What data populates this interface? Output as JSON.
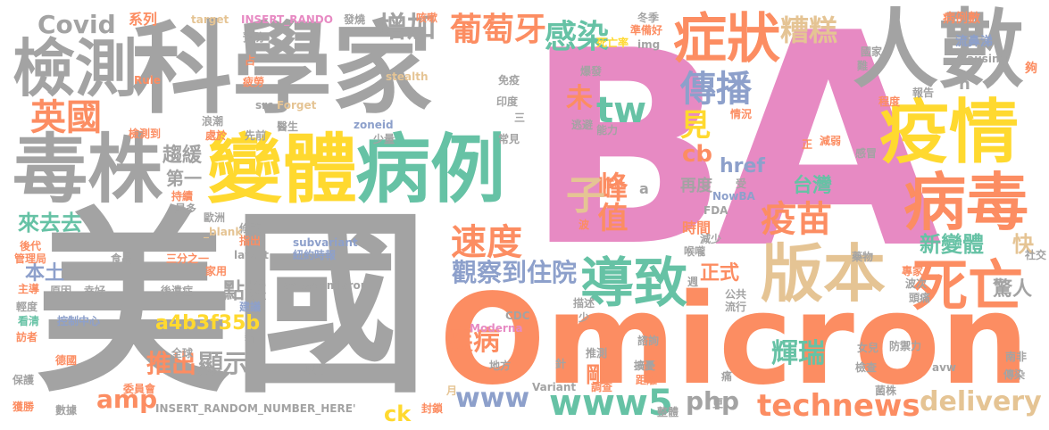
{
  "colors": {
    "gray": "#a3a3a3",
    "pink": "#e78ac3",
    "orange": "#fc8d62",
    "teal": "#66c2a5",
    "blue": "#8da0cb",
    "gold": "#e5c494",
    "yellow": "#ffd92f",
    "lime": "#a6d854"
  },
  "words": [
    {
      "text": "B",
      "color": "pink"
    },
    {
      "text": "A",
      "color": "pink"
    },
    {
      "text": "美國",
      "color": "gray"
    },
    {
      "text": "Omicron",
      "color": "orange"
    },
    {
      "text": "科學家",
      "color": "gray"
    },
    {
      "text": "人數",
      "color": "gray"
    },
    {
      "text": "變體",
      "color": "yellow"
    },
    {
      "text": "病例",
      "color": "teal"
    },
    {
      "text": "毒株",
      "color": "gray"
    },
    {
      "text": "檢測",
      "color": "gray"
    },
    {
      "text": "症狀",
      "color": "orange"
    },
    {
      "text": "疫情",
      "color": "yellow"
    },
    {
      "text": "病毒",
      "color": "orange"
    },
    {
      "text": "版本",
      "color": "gold"
    },
    {
      "text": "死亡",
      "color": "orange"
    },
    {
      "text": "導致",
      "color": "teal"
    },
    {
      "text": "疫苗",
      "color": "orange"
    },
    {
      "text": "www5",
      "color": "teal"
    },
    {
      "text": "technews",
      "color": "orange"
    },
    {
      "text": "www",
      "color": "blue"
    },
    {
      "text": "英國",
      "color": "orange"
    },
    {
      "text": "速度",
      "color": "orange"
    },
    {
      "text": "感染",
      "color": "teal"
    },
    {
      "text": "糟糕",
      "color": "gold"
    },
    {
      "text": "葡萄牙",
      "color": "orange"
    },
    {
      "text": "傳播",
      "color": "blue"
    },
    {
      "text": "增加",
      "color": "gray"
    },
    {
      "text": "Covid",
      "color": "gray"
    },
    {
      "text": "tw",
      "color": "teal"
    },
    {
      "text": "delivery",
      "color": "gold"
    },
    {
      "text": "觀察到住院",
      "color": "blue"
    },
    {
      "text": "新變體",
      "color": "teal"
    },
    {
      "text": "快",
      "color": "gold"
    },
    {
      "text": "輝瑞",
      "color": "teal"
    },
    {
      "text": "峰值",
      "color": "orange"
    },
    {
      "text": "子",
      "color": "gold"
    },
    {
      "text": "見",
      "color": "yellow"
    },
    {
      "text": "未",
      "color": "orange"
    },
    {
      "text": "疾病",
      "color": "orange"
    },
    {
      "text": "cb",
      "color": "orange"
    },
    {
      "text": "推出",
      "color": "orange"
    },
    {
      "text": "顯示",
      "color": "gray"
    },
    {
      "text": "amp",
      "color": "orange"
    },
    {
      "text": "php",
      "color": "gray"
    },
    {
      "text": "a4b3f35b",
      "color": "yellow"
    },
    {
      "text": "台灣",
      "color": "teal"
    },
    {
      "text": "正式",
      "color": "orange"
    },
    {
      "text": "點燃",
      "color": "gray"
    },
    {
      "text": "驚人",
      "color": "gray"
    },
    {
      "text": "href",
      "color": "blue"
    },
    {
      "text": "時間",
      "color": "orange"
    },
    {
      "text": "再度",
      "color": "gray"
    },
    {
      "text": "來去去",
      "color": "teal"
    },
    {
      "text": "本土",
      "color": "blue"
    },
    {
      "text": "趨緩",
      "color": "gray"
    },
    {
      "text": "第一",
      "color": "gray"
    },
    {
      "text": "ck",
      "color": "yellow"
    },
    {
      "text": "剛",
      "color": "orange"
    },
    {
      "text": "系列",
      "color": "orange"
    },
    {
      "text": "target",
      "color": "gold"
    },
    {
      "text": "INSERT_RANDO",
      "color": "pink"
    },
    {
      "text": "發燒",
      "color": "gray"
    },
    {
      "text": "咳嗽",
      "color": "orange"
    },
    {
      "text": "冬季",
      "color": "gray"
    },
    {
      "text": "準備好",
      "color": "orange"
    },
    {
      "text": "死亡率",
      "color": "yellow"
    },
    {
      "text": "病例數",
      "color": "orange"
    },
    {
      "text": "流鼻涕",
      "color": "blue"
    },
    {
      "text": "預防",
      "color": "gray"
    },
    {
      "text": "img",
      "color": "gray"
    },
    {
      "text": "國家",
      "color": "gray"
    },
    {
      "text": "causing",
      "color": "gray"
    },
    {
      "text": "夠",
      "color": "orange"
    },
    {
      "text": "Rule",
      "color": "orange"
    },
    {
      "text": "stealth",
      "color": "gold"
    },
    {
      "text": "爆發",
      "color": "gray"
    },
    {
      "text": "免疫",
      "color": "gray"
    },
    {
      "text": "疲勞",
      "color": "orange"
    },
    {
      "text": "Forget",
      "color": "gold"
    },
    {
      "text": "src",
      "color": "gray"
    },
    {
      "text": "印度",
      "color": "gray"
    },
    {
      "text": "逃避",
      "color": "gray"
    },
    {
      "text": "能力",
      "color": "gray"
    },
    {
      "text": "情況",
      "color": "orange"
    },
    {
      "text": "減弱",
      "color": "orange"
    },
    {
      "text": "報告",
      "color": "gray"
    },
    {
      "text": "程度",
      "color": "orange"
    },
    {
      "text": "檢測到",
      "color": "orange"
    },
    {
      "text": "浪潮",
      "color": "gray"
    },
    {
      "text": "處於",
      "color": "orange"
    },
    {
      "text": "先前",
      "color": "gray"
    },
    {
      "text": "醫生",
      "color": "gray"
    },
    {
      "text": "zoneid",
      "color": "blue"
    },
    {
      "text": "少量",
      "color": "gray"
    },
    {
      "text": "常見",
      "color": "gray"
    },
    {
      "text": "感冒",
      "color": "gray"
    },
    {
      "text": "NowBA",
      "color": "blue"
    },
    {
      "text": "FDA",
      "color": "gray"
    },
    {
      "text": "減少",
      "color": "gray"
    },
    {
      "text": "喉嚨",
      "color": "gray"
    },
    {
      "text": "估計",
      "color": "orange"
    },
    {
      "text": "持續",
      "color": "orange"
    },
    {
      "text": "最多",
      "color": "gray"
    },
    {
      "text": "歐洲",
      "color": "gray"
    },
    {
      "text": "修改",
      "color": "gray"
    },
    {
      "text": "_blank",
      "color": "gold"
    },
    {
      "text": "後代",
      "color": "orange"
    },
    {
      "text": "管理局",
      "color": "orange"
    },
    {
      "text": "食品",
      "color": "gray"
    },
    {
      "text": "三分之一",
      "color": "orange"
    },
    {
      "text": "指出",
      "color": "orange"
    },
    {
      "text": "subvariant",
      "color": "blue"
    },
    {
      "text": "紐約時報",
      "color": "blue"
    },
    {
      "text": "藥物",
      "color": "gray"
    },
    {
      "text": "latest",
      "color": "gray"
    },
    {
      "text": "家用",
      "color": "orange"
    },
    {
      "text": "主導",
      "color": "orange"
    },
    {
      "text": "原因",
      "color": "gray"
    },
    {
      "text": "幸好",
      "color": "gray"
    },
    {
      "text": "後遺症",
      "color": "gray"
    },
    {
      "text": "casesOmicron",
      "color": "gray"
    },
    {
      "text": "專家",
      "color": "orange"
    },
    {
      "text": "波次",
      "color": "gray"
    },
    {
      "text": "頭痛",
      "color": "gray"
    },
    {
      "text": "社交",
      "color": "gray"
    },
    {
      "text": "輕度",
      "color": "gray"
    },
    {
      "text": "建議",
      "color": "blue"
    },
    {
      "text": "公共",
      "color": "gray"
    },
    {
      "text": "流行",
      "color": "gray"
    },
    {
      "text": "看清",
      "color": "teal"
    },
    {
      "text": "控制中心",
      "color": "blue"
    },
    {
      "text": "Moderna",
      "color": "pink"
    },
    {
      "text": "CDC",
      "color": "gray"
    },
    {
      "text": "訪者",
      "color": "orange"
    },
    {
      "text": "描述",
      "color": "gray"
    },
    {
      "text": "少",
      "color": "gray"
    },
    {
      "text": "德國",
      "color": "orange"
    },
    {
      "text": "全球",
      "color": "gray"
    },
    {
      "text": "推測",
      "color": "gray"
    },
    {
      "text": "諮詢",
      "color": "gray"
    },
    {
      "text": "女兒",
      "color": "gray"
    },
    {
      "text": "防禦力",
      "color": "gray"
    },
    {
      "text": "南非",
      "color": "gray"
    },
    {
      "text": "保護",
      "color": "gray"
    },
    {
      "text": "委員會",
      "color": "orange"
    },
    {
      "text": "澳門",
      "color": "gray"
    },
    {
      "text": "地方",
      "color": "gray"
    },
    {
      "text": "針",
      "color": "gray"
    },
    {
      "text": "擴憂",
      "color": "gray"
    },
    {
      "text": "檢查",
      "color": "gray"
    },
    {
      "text": "avw",
      "color": "gray"
    },
    {
      "text": "傳染",
      "color": "gray"
    },
    {
      "text": "Variant",
      "color": "gray"
    },
    {
      "text": "距離",
      "color": "orange"
    },
    {
      "text": "痛",
      "color": "gray"
    },
    {
      "text": "菌株",
      "color": "gray"
    },
    {
      "text": "獲勝",
      "color": "orange"
    },
    {
      "text": "數據",
      "color": "gray"
    },
    {
      "text": "INSERT_RANDOM_NUMBER_HERE'",
      "color": "gray"
    },
    {
      "text": "月",
      "color": "gold"
    },
    {
      "text": "封鎖",
      "color": "orange"
    },
    {
      "text": "調查",
      "color": "orange"
    },
    {
      "text": "整體",
      "color": "gray"
    },
    {
      "text": "更",
      "color": "gray"
    },
    {
      "text": "受",
      "color": "gray"
    },
    {
      "text": "正",
      "color": "orange"
    },
    {
      "text": "波",
      "color": "orange"
    },
    {
      "text": "n",
      "color": "gray"
    },
    {
      "text": "難",
      "color": "gray"
    },
    {
      "text": "週",
      "color": "gray"
    },
    {
      "text": "a",
      "color": "gray"
    },
    {
      "text": "占",
      "color": "orange"
    },
    {
      "text": "三",
      "color": "gray"
    },
    {
      "text": "新",
      "color": "gray"
    }
  ]
}
